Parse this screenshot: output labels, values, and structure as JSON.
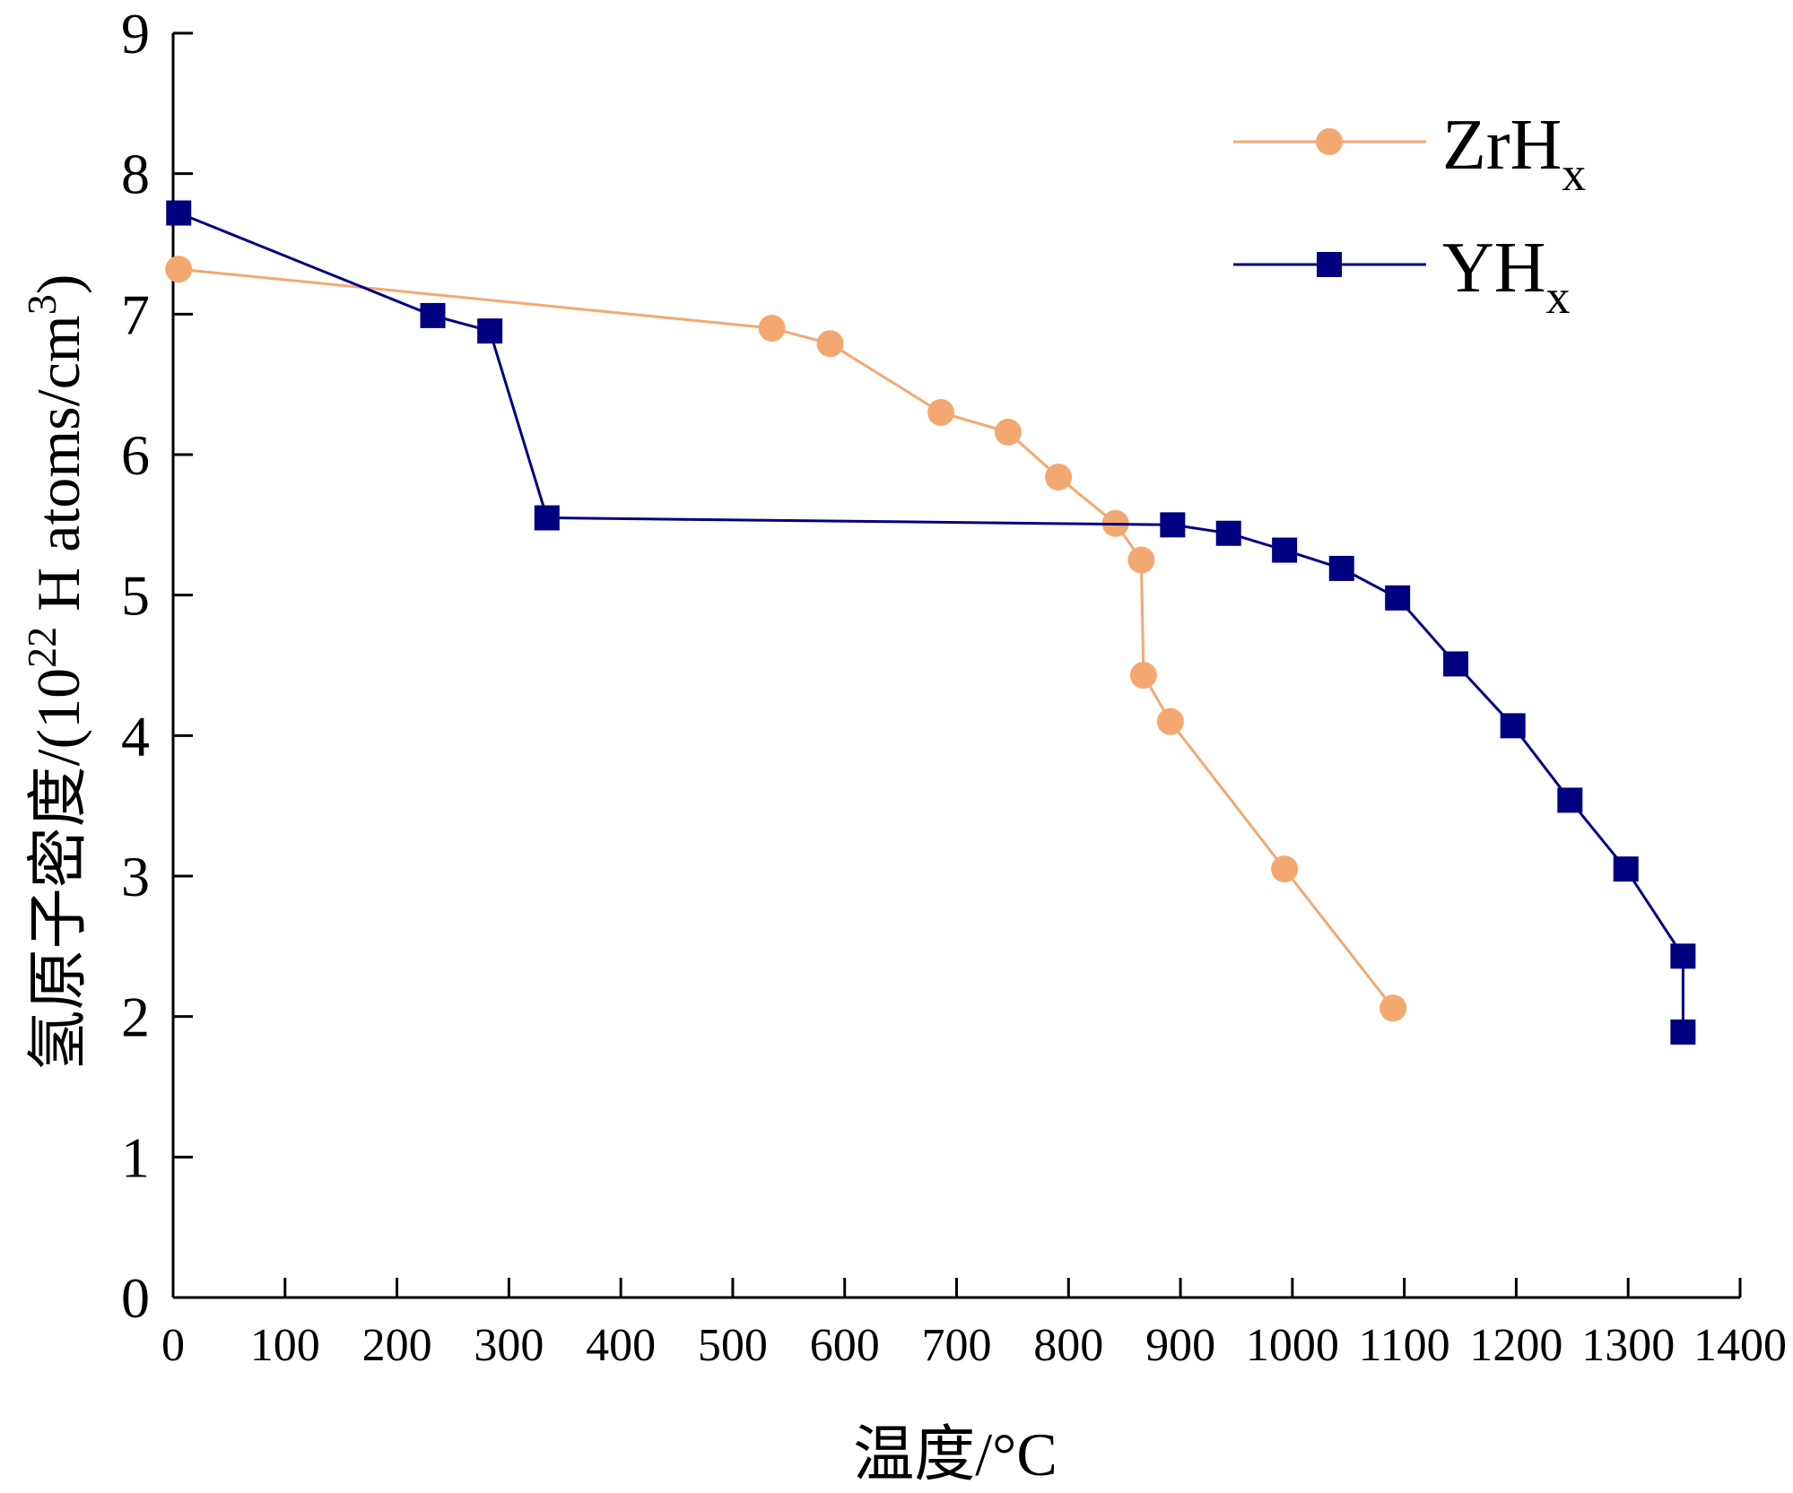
{
  "chart_data": {
    "type": "line",
    "xlabel": "温度/°C",
    "ylabel": {
      "prefix": "氢原子密度/(10",
      "sup1": "22",
      "middle": " H atoms/cm",
      "sup2": "3",
      "suffix": ")"
    },
    "xlim": [
      0,
      1400
    ],
    "ylim": [
      0,
      9
    ],
    "xticks": [
      0,
      100,
      200,
      300,
      400,
      500,
      600,
      700,
      800,
      900,
      1000,
      1100,
      1200,
      1300,
      1400
    ],
    "yticks": [
      0,
      1,
      2,
      3,
      4,
      5,
      6,
      7,
      8,
      9
    ],
    "grid": false,
    "legend_position": "top-right",
    "series": [
      {
        "name": "ZrH",
        "name_sub": "x",
        "color": "#F4A871",
        "marker": "circle",
        "x": [
          5,
          535,
          587,
          686,
          746,
          791,
          842,
          865,
          867,
          891,
          993,
          1090
        ],
        "y": [
          7.32,
          6.9,
          6.79,
          6.3,
          6.16,
          5.84,
          5.51,
          5.25,
          4.43,
          4.1,
          3.05,
          2.06
        ]
      },
      {
        "name": "YH",
        "name_sub": "x",
        "color": "#000080",
        "marker": "square",
        "x": [
          5,
          232,
          283,
          334,
          893,
          943,
          993,
          1044,
          1094,
          1146,
          1197,
          1248,
          1298,
          1349,
          1349
        ],
        "y": [
          7.72,
          6.99,
          6.88,
          5.55,
          5.5,
          5.44,
          5.32,
          5.19,
          4.98,
          4.51,
          4.07,
          3.54,
          3.05,
          2.43,
          1.89
        ]
      }
    ]
  }
}
